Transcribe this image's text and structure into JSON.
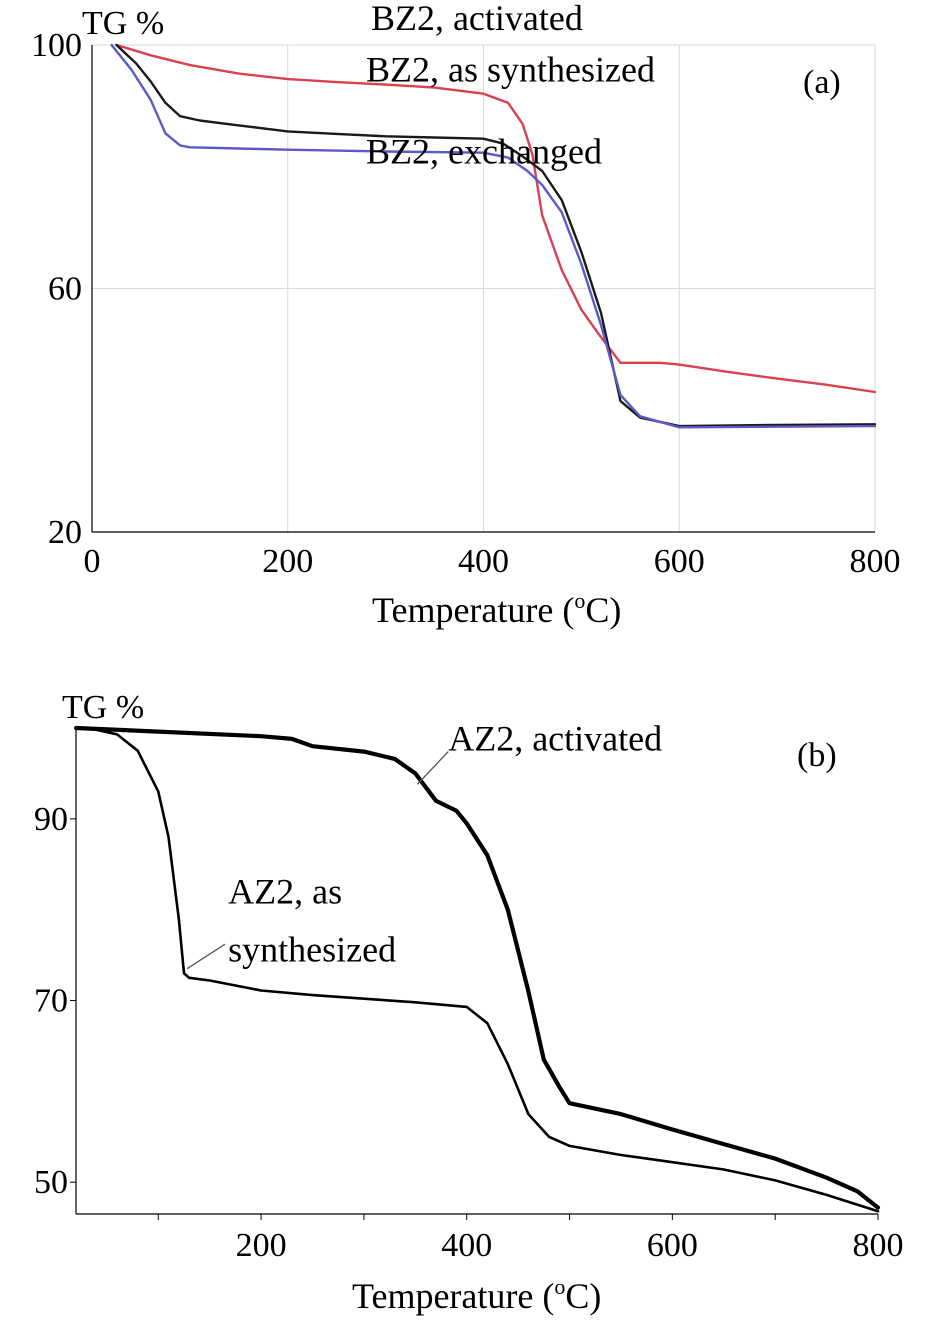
{
  "chart_data": [
    {
      "type": "line",
      "panel_label": "(a)",
      "ylabel": "TG %",
      "xlabel": "Temperature (",
      "xlabel_sup": "o",
      "xlabel_tail": "C)",
      "xlim": [
        0,
        800
      ],
      "ylim": [
        20,
        100
      ],
      "xticks": [
        "0",
        "200",
        "400",
        "600",
        "800"
      ],
      "xtick_values": [
        0,
        200,
        400,
        600,
        800
      ],
      "yticks": [
        "100",
        "60",
        "20"
      ],
      "ytick_values": [
        100,
        60,
        20
      ],
      "grid": true,
      "series": [
        {
          "name": "BZ2, activated",
          "color": "#d94050",
          "points": [
            [
              25,
              100
            ],
            [
              60,
              98.3
            ],
            [
              100,
              96.7
            ],
            [
              150,
              95.3
            ],
            [
              200,
              94.4
            ],
            [
              250,
              93.9
            ],
            [
              300,
              93.5
            ],
            [
              350,
              93.0
            ],
            [
              400,
              92.0
            ],
            [
              425,
              90.5
            ],
            [
              440,
              87
            ],
            [
              450,
              82
            ],
            [
              460,
              72
            ],
            [
              480,
              63
            ],
            [
              500,
              56.5
            ],
            [
              520,
              52
            ],
            [
              540,
              47.8
            ],
            [
              560,
              47.8
            ],
            [
              580,
              47.8
            ],
            [
              600,
              47.5
            ],
            [
              650,
              46.3
            ],
            [
              700,
              45.2
            ],
            [
              750,
              44.2
            ],
            [
              800,
              43.0
            ]
          ]
        },
        {
          "name": "BZ2, as synthesized",
          "color": "#1a1a1a",
          "points": [
            [
              25,
              100
            ],
            [
              45,
              97
            ],
            [
              60,
              94
            ],
            [
              75,
              90.5
            ],
            [
              90,
              88.3
            ],
            [
              110,
              87.6
            ],
            [
              150,
              86.8
            ],
            [
              200,
              85.8
            ],
            [
              250,
              85.4
            ],
            [
              300,
              85.0
            ],
            [
              350,
              84.8
            ],
            [
              400,
              84.6
            ],
            [
              420,
              83.8
            ],
            [
              440,
              81.7
            ],
            [
              460,
              79.3
            ],
            [
              480,
              74.5
            ],
            [
              500,
              66
            ],
            [
              520,
              56
            ],
            [
              540,
              41.5
            ],
            [
              560,
              38.8
            ],
            [
              600,
              37.4
            ],
            [
              700,
              37.6
            ],
            [
              800,
              37.7
            ]
          ]
        },
        {
          "name": "BZ2, exchanged",
          "color": "#5a5ac8",
          "points": [
            [
              20,
              100
            ],
            [
              40,
              96
            ],
            [
              60,
              91
            ],
            [
              75,
              85.5
            ],
            [
              90,
              83.5
            ],
            [
              100,
              83.2
            ],
            [
              150,
              83.0
            ],
            [
              200,
              82.8
            ],
            [
              300,
              82.5
            ],
            [
              400,
              82.3
            ],
            [
              425,
              81.5
            ],
            [
              445,
              79.3
            ],
            [
              460,
              77
            ],
            [
              480,
              72.5
            ],
            [
              500,
              64
            ],
            [
              520,
              54
            ],
            [
              540,
              42.5
            ],
            [
              560,
              39
            ],
            [
              600,
              37.2
            ],
            [
              700,
              37.3
            ],
            [
              800,
              37.4
            ]
          ]
        }
      ],
      "annotations": [
        {
          "text": "BZ2, activated",
          "x": 285,
          "y": 102.5
        },
        {
          "text": "BZ2, as synthesized",
          "x": 280,
          "y": 94
        },
        {
          "text": "BZ2, exchanged",
          "x": 280,
          "y": 80.5
        }
      ]
    },
    {
      "type": "line",
      "panel_label": "(b)",
      "ylabel": "TG %",
      "xlabel": "Temperature (",
      "xlabel_sup": "o",
      "xlabel_tail": "C)",
      "xlim": [
        20,
        800
      ],
      "ylim": [
        46.5,
        100
      ],
      "xticks": [
        "200",
        "400",
        "600",
        "800"
      ],
      "xtick_values": [
        200,
        400,
        600,
        800
      ],
      "yticks": [
        "90",
        "70",
        "50"
      ],
      "ytick_values": [
        90,
        70,
        50
      ],
      "grid": false,
      "series": [
        {
          "name": "AZ2, activated",
          "color": "#000000",
          "points": [
            [
              20,
              100
            ],
            [
              100,
              99.6
            ],
            [
              200,
              99.1
            ],
            [
              230,
              98.8
            ],
            [
              250,
              98
            ],
            [
              300,
              97.4
            ],
            [
              330,
              96.6
            ],
            [
              350,
              95
            ],
            [
              370,
              92
            ],
            [
              390,
              90.9
            ],
            [
              400,
              89.5
            ],
            [
              420,
              86
            ],
            [
              440,
              80
            ],
            [
              460,
              71
            ],
            [
              475,
              63.5
            ],
            [
              490,
              60.5
            ],
            [
              500,
              58.7
            ],
            [
              550,
              57.5
            ],
            [
              600,
              55.8
            ],
            [
              650,
              54.2
            ],
            [
              700,
              52.6
            ],
            [
              750,
              50.5
            ],
            [
              780,
              49
            ],
            [
              800,
              47.2
            ]
          ]
        },
        {
          "name": "AZ2, as synthesized",
          "color": "#000000",
          "points": [
            [
              20,
              100
            ],
            [
              40,
              99.8
            ],
            [
              60,
              99.3
            ],
            [
              80,
              97.5
            ],
            [
              100,
              93
            ],
            [
              110,
              88
            ],
            [
              120,
              79
            ],
            [
              125,
              73
            ],
            [
              130,
              72.5
            ],
            [
              150,
              72.2
            ],
            [
              200,
              71.1
            ],
            [
              250,
              70.6
            ],
            [
              300,
              70.2
            ],
            [
              350,
              69.8
            ],
            [
              400,
              69.3
            ],
            [
              420,
              67.5
            ],
            [
              440,
              63
            ],
            [
              460,
              57.5
            ],
            [
              480,
              55
            ],
            [
              500,
              54
            ],
            [
              550,
              53
            ],
            [
              600,
              52.2
            ],
            [
              650,
              51.4
            ],
            [
              700,
              50.2
            ],
            [
              750,
              48.6
            ],
            [
              800,
              46.8
            ]
          ]
        }
      ],
      "annotations": [
        {
          "text": "AZ2, activated",
          "x": 382,
          "y": 97.5
        },
        {
          "text": "AZ2, as",
          "x": 168,
          "y": 80.7
        },
        {
          "text": "synthesized",
          "x": 168,
          "y": 74.3
        }
      ],
      "pointers": [
        {
          "from": [
            382,
            97.4
          ],
          "to": [
            352,
            93.8
          ]
        },
        {
          "from": [
            165,
            76.2
          ],
          "to": [
            128,
            73.5
          ]
        }
      ]
    }
  ]
}
